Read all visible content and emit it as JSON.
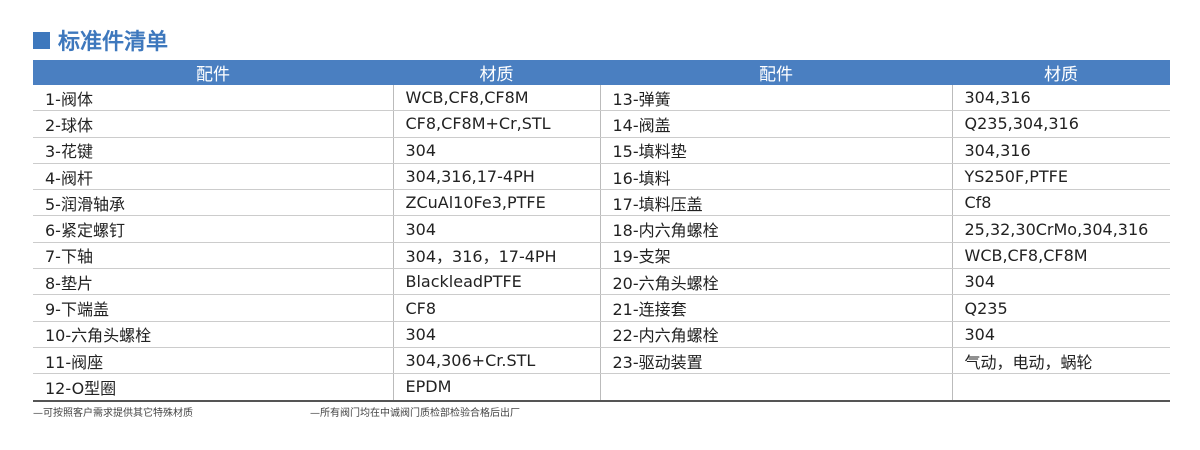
{
  "title": "标准件清单",
  "colors": {
    "accent": "#4a7fc1"
  },
  "headers": [
    "配件",
    "材质",
    "配件",
    "材质"
  ],
  "rows": [
    [
      "1-阀体",
      "WCB,CF8,CF8M",
      "13-弹簧",
      "304,316"
    ],
    [
      "2-球体",
      "CF8,CF8M+Cr,STL",
      "14-阀盖",
      "Q235,304,316"
    ],
    [
      "3-花键",
      "304",
      "15-填料垫",
      "304,316"
    ],
    [
      "4-阀杆",
      "304,316,17-4PH",
      "16-填料",
      "YS250F,PTFE"
    ],
    [
      "5-润滑轴承",
      "ZCuAl10Fe3,PTFE",
      "17-填料压盖",
      "Cf8"
    ],
    [
      "6-紧定螺钉",
      "304",
      "18-内六角螺栓",
      "25,32,30CrMo,304,316"
    ],
    [
      "7-下轴",
      "304，316，17-4PH",
      "19-支架",
      "WCB,CF8,CF8M"
    ],
    [
      "8-垫片",
      "BlackleadPTFE",
      "20-六角头螺栓",
      "304"
    ],
    [
      "9-下端盖",
      "CF8",
      "21-连接套",
      "Q235"
    ],
    [
      "10-六角头螺栓",
      "304",
      "22-内六角螺栓",
      "304"
    ],
    [
      "11-阀座",
      "304,306+Cr.STL",
      "23-驱动装置",
      "气动，电动，蜗轮"
    ],
    [
      "12-O型圈",
      "EPDM",
      "",
      ""
    ]
  ],
  "notes": [
    "—可按照客户需求提供其它特殊材质",
    "—所有阀门均在中诚阀门质检部检验合格后出厂"
  ]
}
